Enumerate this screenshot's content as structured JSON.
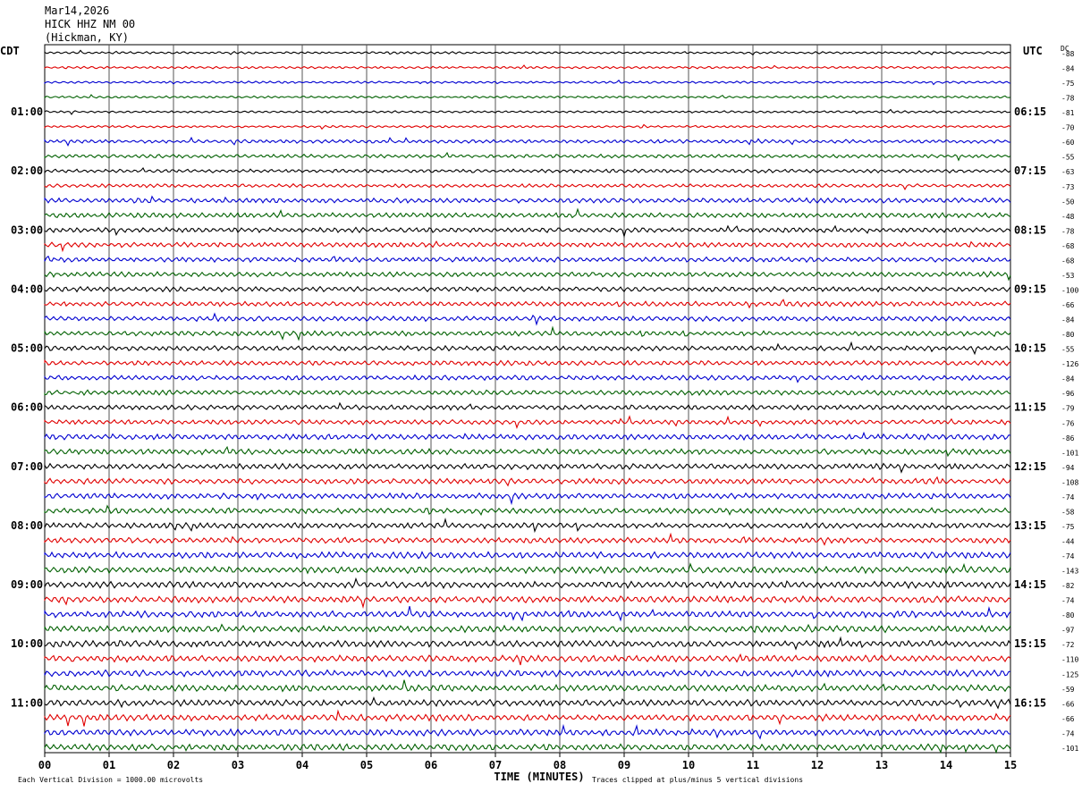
{
  "header": {
    "date": "Mar14,2026",
    "station": "HICK HHZ NM 00",
    "location": "(Hickman, KY)"
  },
  "chart_data": {
    "type": "line",
    "left_timezone": "CDT",
    "right_timezone": "UTC",
    "dc_header": "DC",
    "xlabel": "TIME (MINUTES)",
    "xlim": [
      0,
      15
    ],
    "x_ticks": [
      "00",
      "01",
      "02",
      "03",
      "04",
      "05",
      "06",
      "07",
      "08",
      "09",
      "10",
      "11",
      "12",
      "13",
      "14",
      "15"
    ],
    "left_hour_labels": [
      "01:00",
      "02:00",
      "03:00",
      "04:00",
      "05:00",
      "06:00",
      "07:00",
      "08:00",
      "09:00",
      "10:00",
      "11:00"
    ],
    "right_hour_labels": [
      "06:15",
      "07:15",
      "08:15",
      "09:15",
      "10:15",
      "11:15",
      "12:15",
      "13:15",
      "14:15",
      "15:15",
      "16:15"
    ],
    "trace_colors": [
      "#000000",
      "#e00000",
      "#0000d0",
      "#006000"
    ],
    "dc_offsets": [
      -88,
      -84,
      -75,
      -78,
      -81,
      -70,
      -60,
      -55,
      -63,
      -73,
      -50,
      -48,
      -78,
      -68,
      -68,
      -53,
      -100,
      -66,
      -84,
      -80,
      -55,
      -126,
      -84,
      -96,
      -79,
      -76,
      -86,
      -101,
      -94,
      -108,
      -74,
      -58,
      -75,
      -44,
      -74,
      -143,
      -82,
      -74,
      -80,
      -97,
      -72,
      -110,
      -125,
      -59,
      -66,
      -66,
      -74,
      -101
    ],
    "footer_left": "Each Vertical Division = 1000.00 microvolts",
    "footer_right": "Traces clipped at plus/minus 5 vertical divisions"
  }
}
